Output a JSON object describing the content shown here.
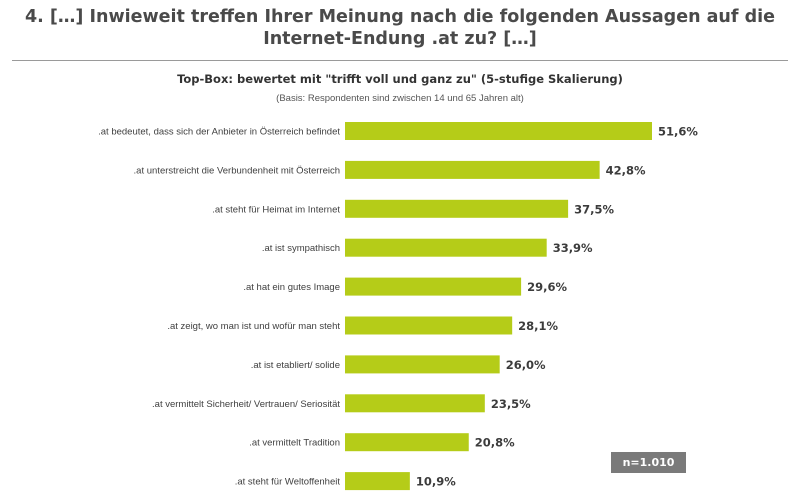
{
  "header": {
    "title_line1": "4. […] Inwieweit treffen Ihrer Meinung nach die folgenden Aussagen auf die",
    "title_line2": "Internet-Endung .at zu? […]"
  },
  "chart_data": {
    "type": "bar",
    "orientation": "horizontal",
    "title": "Top-Box: bewertet mit \"trifft voll und ganz zu\" (5-stufige Skalierung)",
    "subtitle": "(Basis: Respondenten sind zwischen 14 und 65 Jahren alt)",
    "categories": [
      ".at bedeutet, dass sich der Anbieter in Österreich befindet",
      ".at unterstreicht die Verbundenheit mit Österreich",
      ".at steht für Heimat im Internet",
      ".at ist sympathisch",
      ".at hat ein gutes Image",
      ".at zeigt, wo man ist und wofür man steht",
      ".at ist etabliert/ solide",
      ".at vermittelt Sicherheit/ Vertrauen/ Seriosität",
      ".at vermittelt Tradition",
      ".at steht für Weltoffenheit"
    ],
    "values": [
      51.6,
      42.8,
      37.5,
      33.9,
      29.6,
      28.1,
      26.0,
      23.5,
      20.8,
      10.9
    ],
    "value_labels": [
      "51,6%",
      "42,8%",
      "37,5%",
      "33,9%",
      "29,6%",
      "28,1%",
      "26,0%",
      "23,5%",
      "20,8%",
      "10,9%"
    ],
    "bar_color": "#b5cc18",
    "xlim": [
      0,
      51.6
    ],
    "grid": false,
    "sample_note": "n=1.010"
  }
}
